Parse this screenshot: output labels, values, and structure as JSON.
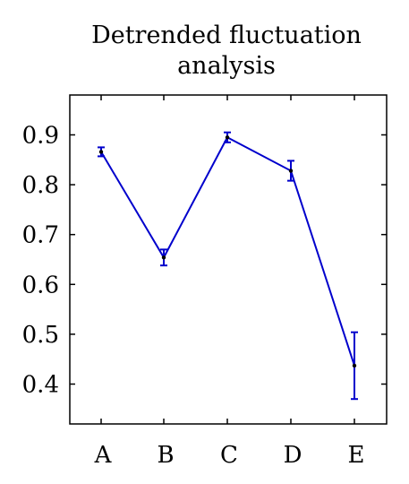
{
  "chart_data": {
    "type": "line",
    "title_lines": [
      "Detrended fluctuation",
      "analysis"
    ],
    "categories": [
      "A",
      "B",
      "C",
      "D",
      "E"
    ],
    "series": [
      {
        "values": [
          0.866,
          0.654,
          0.895,
          0.828,
          0.437
        ],
        "errors": [
          0.009,
          0.016,
          0.01,
          0.02,
          0.067
        ],
        "color": "#0000cc",
        "marker_color": "#000000"
      }
    ],
    "ylim": [
      0.32,
      0.98
    ],
    "yticks": [
      "0.4",
      "0.5",
      "0.6",
      "0.7",
      "0.8",
      "0.9"
    ],
    "grid": false
  }
}
